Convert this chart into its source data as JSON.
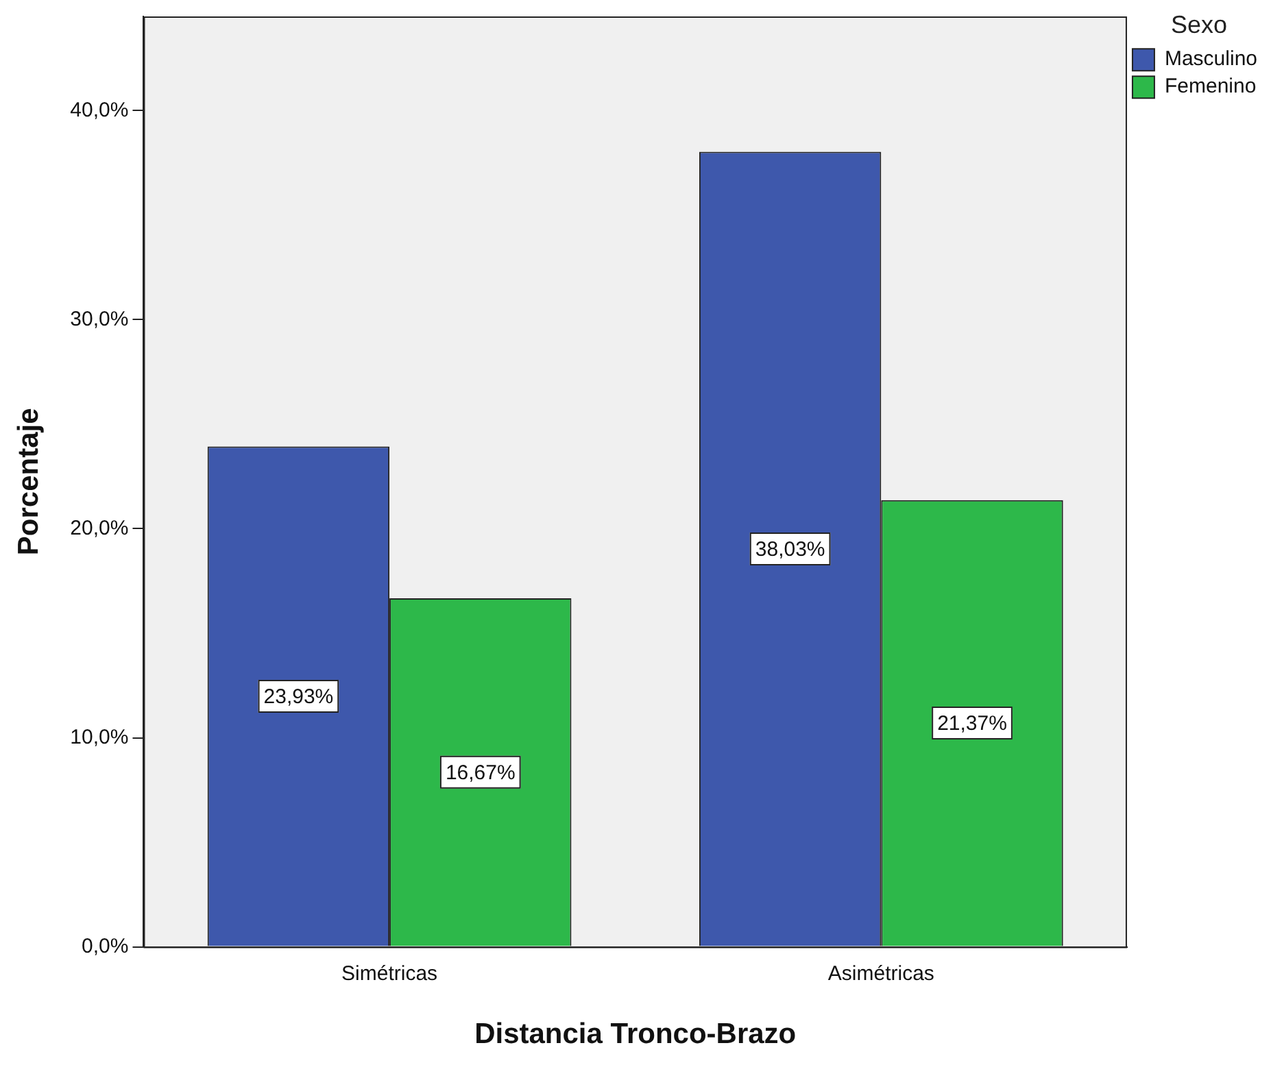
{
  "chart_data": {
    "type": "bar",
    "xlabel": "Distancia Tronco-Brazo",
    "ylabel": "Porcentaje",
    "legend_title": "Sexo",
    "categories": [
      "Simétricas",
      "Asimétricas"
    ],
    "series": [
      {
        "name": "Masculino",
        "color": "#3e58ac",
        "values": [
          23.93,
          38.03
        ],
        "value_labels": [
          "23,93%",
          "38,03%"
        ]
      },
      {
        "name": "Femenino",
        "color": "#2db84a",
        "values": [
          16.67,
          21.37
        ],
        "value_labels": [
          "16,67%",
          "21,37%"
        ]
      }
    ],
    "ylim": [
      0,
      44.5
    ],
    "yticks": [
      {
        "value": 0,
        "label": "0,0%"
      },
      {
        "value": 10,
        "label": "10,0%"
      },
      {
        "value": 20,
        "label": "20,0%"
      },
      {
        "value": 30,
        "label": "30,0%"
      },
      {
        "value": 40,
        "label": "40,0%"
      }
    ],
    "grid": false,
    "legend": "top right"
  }
}
